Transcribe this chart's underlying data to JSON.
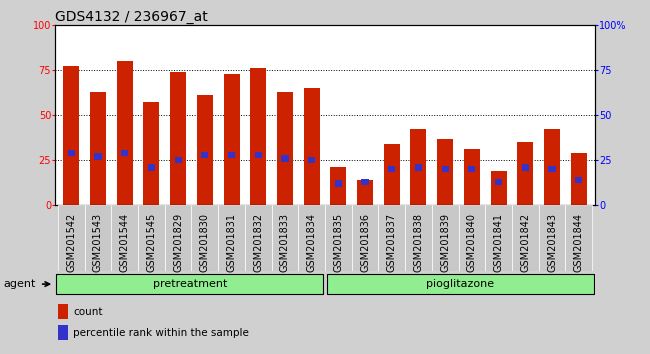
{
  "title": "GDS4132 / 236967_at",
  "categories": [
    "GSM201542",
    "GSM201543",
    "GSM201544",
    "GSM201545",
    "GSM201829",
    "GSM201830",
    "GSM201831",
    "GSM201832",
    "GSM201833",
    "GSM201834",
    "GSM201835",
    "GSM201836",
    "GSM201837",
    "GSM201838",
    "GSM201839",
    "GSM201840",
    "GSM201841",
    "GSM201842",
    "GSM201843",
    "GSM201844"
  ],
  "count_values": [
    77,
    63,
    80,
    57,
    74,
    61,
    73,
    76,
    63,
    65,
    21,
    14,
    34,
    42,
    37,
    31,
    19,
    35,
    42,
    29
  ],
  "percentile_values": [
    29,
    27,
    29,
    21,
    25,
    28,
    28,
    28,
    26,
    25,
    12,
    13,
    20,
    21,
    20,
    20,
    13,
    21,
    20,
    14
  ],
  "bar_color": "#cc2200",
  "percentile_color": "#3333cc",
  "ylim": [
    0,
    100
  ],
  "yticks": [
    0,
    25,
    50,
    75,
    100
  ],
  "plot_bg": "#ffffff",
  "outer_bg": "#d0d0d0",
  "green_bg": "#90ee90",
  "pretreatment_label": "pretreatment",
  "pioglitazone_label": "pioglitazone",
  "agent_label": "agent",
  "legend_count_label": "count",
  "legend_percentile_label": "percentile rank within the sample",
  "title_fontsize": 10,
  "tick_fontsize": 7,
  "bar_width": 0.6,
  "n_pretreatment": 10,
  "n_pioglitazone": 10
}
